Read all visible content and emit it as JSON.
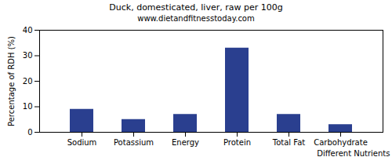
{
  "chart_data": {
    "type": "bar",
    "title": "Duck, domesticated, liver, raw per 100g",
    "subtitle": "www.dietandfitnesstoday.com",
    "xlabel": "Different Nutrients",
    "ylabel": "Percentage of RDH (%)",
    "categories": [
      "Sodium",
      "Potassium",
      "Energy",
      "Protein",
      "Total Fat",
      "Carbohydrate"
    ],
    "values": [
      9,
      5,
      7,
      33,
      7,
      3
    ],
    "color": "#2a3f8f",
    "ylim": [
      0,
      40
    ],
    "yticks": [
      0,
      10,
      20,
      30,
      40
    ],
    "grid": false
  }
}
